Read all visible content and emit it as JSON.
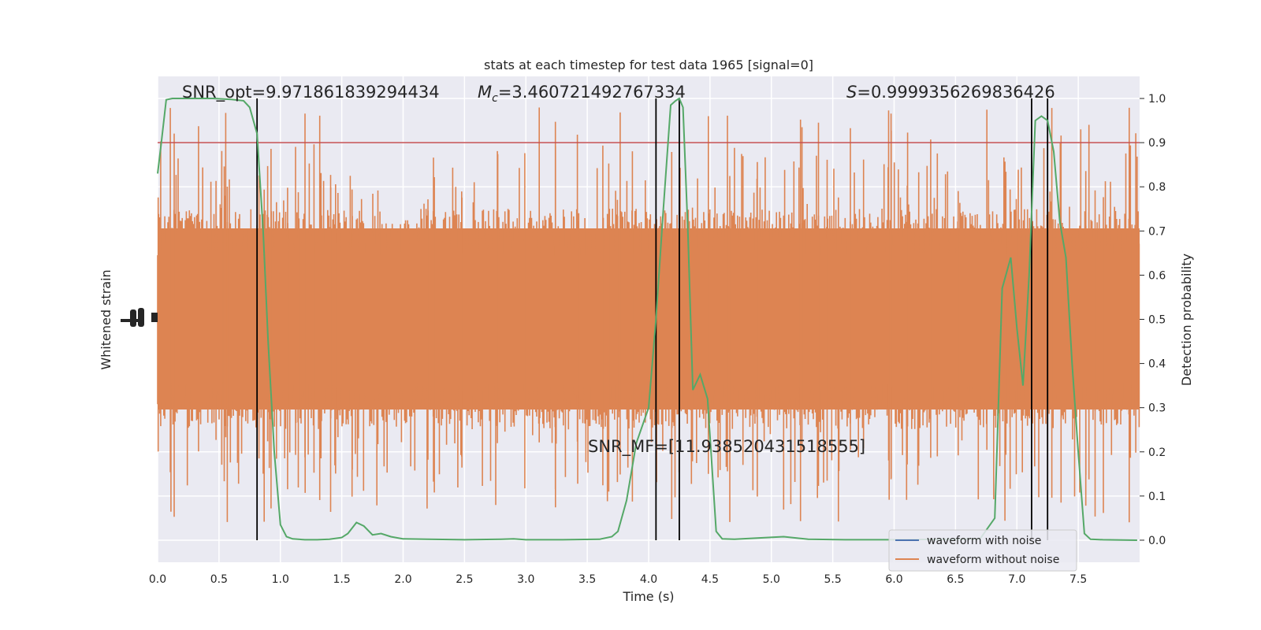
{
  "chart_data": {
    "type": "line",
    "title": "stats at each timestep for test data 1965 [signal=0]",
    "xlabel": "Time (s)",
    "ylabel_left": "Whitened strain",
    "ylabel_right": "Detection probability",
    "xlim": [
      0,
      8
    ],
    "ylim_right": [
      -0.05,
      1.05
    ],
    "x_ticks": [
      "0.0",
      "0.5",
      "1.0",
      "1.5",
      "2.0",
      "2.5",
      "3.0",
      "3.5",
      "4.0",
      "4.5",
      "5.0",
      "5.5",
      "6.0",
      "6.5",
      "7.0",
      "7.5"
    ],
    "y_right_ticks": [
      "0.0",
      "0.1",
      "0.2",
      "0.3",
      "0.4",
      "0.5",
      "0.6",
      "0.7",
      "0.8",
      "0.9",
      "1.0"
    ],
    "grid": true,
    "legend_position": "lower-right",
    "legend": [
      {
        "label": "waveform with noise",
        "color": "#4c72b0"
      },
      {
        "label": "waveform without noise",
        "color": "#dd8452"
      }
    ],
    "annotations": {
      "snr_opt": "SNR_opt=9.971861839294434",
      "mc_symbol": "M",
      "mc_subscript": "c",
      "mc_value": "=3.460721492767334",
      "s_symbol": "S",
      "s_value": "=0.9999356269836426",
      "snr_mf": "SNR_MF=[11.938520431518555]"
    },
    "threshold": {
      "value": 0.9,
      "color": "#c44e52"
    },
    "vertical_markers": [
      0.81,
      4.06,
      4.25,
      7.12,
      7.25
    ],
    "noise_band": {
      "color": "#dd8452"
    },
    "detection_probability": {
      "color": "#55a868",
      "x": [
        0.0,
        0.03,
        0.07,
        0.12,
        0.2,
        0.3,
        0.45,
        0.6,
        0.7,
        0.75,
        0.81,
        0.86,
        0.9,
        0.95,
        1.0,
        1.05,
        1.1,
        1.2,
        1.3,
        1.4,
        1.5,
        1.55,
        1.62,
        1.68,
        1.75,
        1.82,
        1.9,
        2.0,
        2.2,
        2.5,
        2.8,
        2.9,
        3.0,
        3.3,
        3.6,
        3.7,
        3.75,
        3.82,
        3.9,
        4.0,
        4.06,
        4.12,
        4.18,
        4.22,
        4.25,
        4.28,
        4.32,
        4.36,
        4.42,
        4.48,
        4.55,
        4.6,
        4.7,
        4.9,
        5.1,
        5.3,
        5.6,
        6.0,
        6.4,
        6.7,
        6.82,
        6.88,
        6.95,
        7.0,
        7.05,
        7.1,
        7.15,
        7.2,
        7.25,
        7.3,
        7.35,
        7.4,
        7.45,
        7.5,
        7.55,
        7.6,
        7.7,
        7.98
      ],
      "y": [
        0.83,
        0.9,
        0.997,
        1.0,
        1.0,
        1.0,
        1.0,
        0.998,
        0.995,
        0.98,
        0.92,
        0.7,
        0.45,
        0.2,
        0.035,
        0.008,
        0.003,
        0.001,
        0.001,
        0.002,
        0.006,
        0.015,
        0.04,
        0.032,
        0.012,
        0.015,
        0.008,
        0.003,
        0.002,
        0.001,
        0.002,
        0.003,
        0.001,
        0.001,
        0.002,
        0.008,
        0.02,
        0.09,
        0.22,
        0.3,
        0.5,
        0.75,
        0.985,
        0.995,
        1.0,
        0.98,
        0.7,
        0.34,
        0.375,
        0.32,
        0.02,
        0.003,
        0.002,
        0.005,
        0.008,
        0.002,
        0.001,
        0.001,
        0.002,
        0.003,
        0.05,
        0.57,
        0.64,
        0.48,
        0.35,
        0.6,
        0.95,
        0.96,
        0.95,
        0.88,
        0.72,
        0.64,
        0.4,
        0.2,
        0.015,
        0.002,
        0.001,
        0.0
      ]
    }
  }
}
